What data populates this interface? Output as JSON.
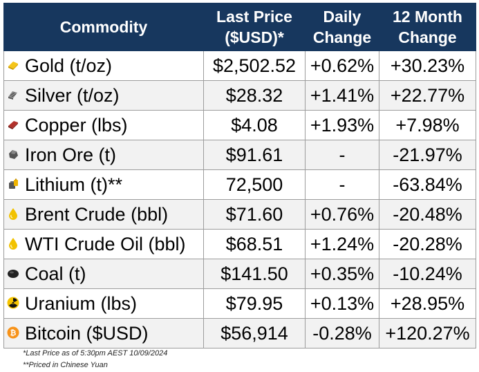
{
  "header": {
    "commodity": "Commodity",
    "last_price": [
      "Last Price",
      "($USD)*"
    ],
    "daily_change": [
      "Daily",
      "Change"
    ],
    "month_change": [
      "12 Month",
      "Change"
    ]
  },
  "rows": [
    {
      "name": "Gold (t/oz)",
      "icon": "gold-bar-icon",
      "price": "$2,502.52",
      "daily": "+0.62%",
      "month": "+30.23%"
    },
    {
      "name": "Silver (t/oz)",
      "icon": "silver-bar-icon",
      "price": "$28.32",
      "daily": "+1.41%",
      "month": "+22.77%"
    },
    {
      "name": "Copper (lbs)",
      "icon": "copper-bar-icon",
      "price": "$4.08",
      "daily": "+1.93%",
      "month": "+7.98%"
    },
    {
      "name": "Iron Ore (t)",
      "icon": "iron-ore-rock-icon",
      "price": "$91.61",
      "daily": "-",
      "month": "-21.97%"
    },
    {
      "name": "Lithium (t)**",
      "icon": "battery-icon",
      "price": "72,500",
      "daily": "-",
      "month": "-63.84%"
    },
    {
      "name": "Brent Crude (bbl)",
      "icon": "oil-drop-icon",
      "price": "$71.60",
      "daily": "+0.76%",
      "month": "-20.48%"
    },
    {
      "name": "WTI Crude Oil (bbl)",
      "icon": "oil-drop-icon",
      "price": "$68.51",
      "daily": "+1.24%",
      "month": "-20.28%"
    },
    {
      "name": "Coal (t)",
      "icon": "coal-lump-icon",
      "price": "$141.50",
      "daily": "+0.35%",
      "month": "-10.24%"
    },
    {
      "name": "Uranium (lbs)",
      "icon": "radiation-icon",
      "price": "$79.95",
      "daily": "+0.13%",
      "month": "+28.95%"
    },
    {
      "name": "Bitcoin ($USD)",
      "icon": "bitcoin-icon",
      "price": "$56,914",
      "daily": "-0.28%",
      "month": "+120.27%"
    }
  ],
  "colors": {
    "header_bg": "#17375e",
    "positive": "#118c4f",
    "negative": "#e0261b",
    "alt_row": "#f2f2f2"
  },
  "footnotes": {
    "note1": "*Last Price as of 5:30pm AEST 10/09/2024",
    "note2": "**Priced in Chinese Yuan"
  }
}
